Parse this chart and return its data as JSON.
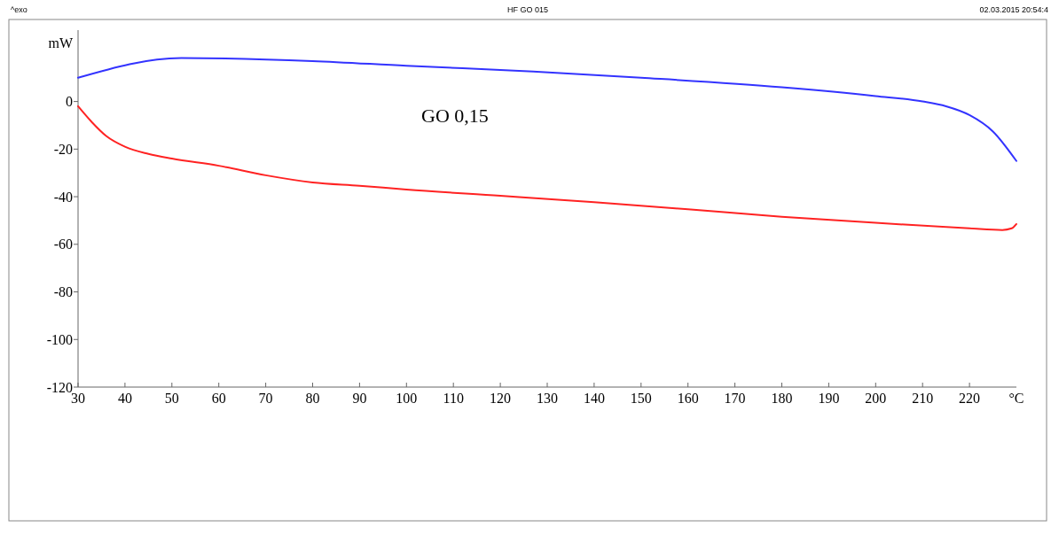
{
  "chart_data": {
    "type": "line",
    "title": "HF GO 015",
    "xlabel": "°C",
    "ylabel": "mW",
    "annotations": [
      "^exo",
      "02.03.2015 20:54:4",
      "GO 0,15"
    ],
    "xlim": [
      30,
      230
    ],
    "xticks": [
      30,
      40,
      50,
      60,
      70,
      80,
      90,
      100,
      110,
      120,
      130,
      140,
      150,
      160,
      170,
      180,
      190,
      200,
      210,
      220
    ],
    "ylim": [
      -120,
      30
    ],
    "yticks": [
      -120,
      -100,
      -80,
      -60,
      -40,
      -20,
      0
    ],
    "series": [
      {
        "color": "#3333ff",
        "x": [
          30,
          52,
          80,
          100,
          127,
          150,
          180,
          200,
          210,
          215,
          220,
          225,
          230
        ],
        "values": [
          10,
          18.3,
          17,
          15,
          12.6,
          10,
          6,
          2.3,
          0,
          -2,
          -5.7,
          -12.6,
          -25
        ]
      },
      {
        "color": "#ff2222",
        "x": [
          30,
          33,
          36,
          40,
          45,
          50,
          60,
          70,
          80,
          90,
          100,
          120,
          140,
          160,
          180,
          200,
          220,
          227,
          229,
          230
        ],
        "values": [
          -2,
          -8.8,
          -14.5,
          -19,
          -22,
          -24,
          -27,
          -31,
          -34,
          -35.4,
          -37,
          -39.6,
          -42.3,
          -45.3,
          -48.4,
          -51,
          -53.3,
          -54,
          -53.3,
          -51.5
        ]
      }
    ]
  }
}
